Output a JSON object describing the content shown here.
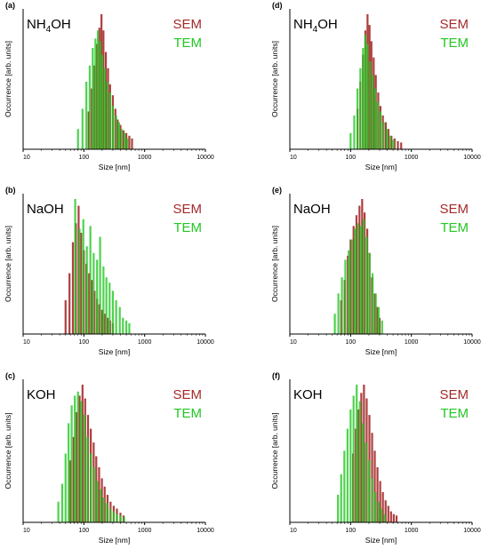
{
  "figure": {
    "panels": [
      {
        "label": "(a)",
        "sample": "NH",
        "sub": "4",
        "sample_rest": "OH"
      },
      {
        "label": "(d)",
        "sample": "NH",
        "sub": "4",
        "sample_rest": "OH"
      },
      {
        "label": "(b)",
        "sample": "NaOH",
        "sub": "",
        "sample_rest": ""
      },
      {
        "label": "(e)",
        "sample": "NaOH",
        "sub": "",
        "sample_rest": ""
      },
      {
        "label": "(c)",
        "sample": "KOH",
        "sub": "",
        "sample_rest": ""
      },
      {
        "label": "(f)",
        "sample": "KOH",
        "sub": "",
        "sample_rest": ""
      }
    ]
  },
  "colors": {
    "sem": "#a52a2a",
    "tem": "#22c722",
    "axis": "#000000"
  },
  "chart_data": [
    {
      "type": "bar",
      "panel": "(a)",
      "title": "NH4OH",
      "xlabel": "Size [nm]",
      "ylabel": "Occurrence [arb. units]",
      "xscale": "log",
      "xlim": [
        10,
        10000
      ],
      "ylim": [
        0,
        1
      ],
      "xticks": [
        "10",
        "100",
        "1000",
        "10000"
      ],
      "legend": [
        "SEM",
        "TEM"
      ],
      "series": [
        {
          "name": "SEM",
          "x": [
            120,
            135,
            150,
            165,
            180,
            195,
            210,
            230,
            250,
            270,
            300,
            330,
            360,
            400,
            450,
            500,
            560,
            620
          ],
          "values": [
            0.28,
            0.45,
            0.62,
            0.78,
            0.9,
            1.0,
            0.88,
            0.72,
            0.6,
            0.48,
            0.4,
            0.3,
            0.22,
            0.18,
            0.14,
            0.12,
            0.1,
            0.08
          ]
        },
        {
          "name": "TEM",
          "x": [
            80,
            95,
            110,
            125,
            140,
            155,
            170,
            185,
            200,
            220,
            245,
            270,
            300,
            340,
            380,
            420,
            470,
            520
          ],
          "values": [
            0.15,
            0.3,
            0.5,
            0.62,
            0.75,
            0.82,
            0.88,
            0.8,
            0.7,
            0.6,
            0.5,
            0.42,
            0.32,
            0.25,
            0.2,
            0.15,
            0.12,
            0.08
          ]
        }
      ]
    },
    {
      "type": "bar",
      "panel": "(d)",
      "title": "NH4OH",
      "xlabel": "Size [nm]",
      "ylabel": "Occurrence [arb. units]",
      "xscale": "log",
      "xlim": [
        10,
        10000
      ],
      "ylim": [
        0,
        1
      ],
      "xticks": [
        "10",
        "100",
        "1000",
        "10000"
      ],
      "legend": [
        "SEM",
        "TEM"
      ],
      "series": [
        {
          "name": "SEM",
          "x": [
            130,
            145,
            160,
            175,
            190,
            205,
            220,
            240,
            260,
            285,
            310,
            340,
            380,
            420,
            470,
            530,
            600,
            680
          ],
          "values": [
            0.3,
            0.5,
            0.7,
            0.88,
            1.0,
            0.92,
            0.8,
            0.68,
            0.55,
            0.42,
            0.32,
            0.25,
            0.2,
            0.15,
            0.1,
            0.08,
            0.06,
            0.05
          ]
        },
        {
          "name": "TEM",
          "x": [
            100,
            115,
            130,
            145,
            160,
            175,
            190,
            210,
            230,
            255,
            280,
            310,
            350,
            400,
            450,
            510
          ],
          "values": [
            0.12,
            0.25,
            0.45,
            0.6,
            0.75,
            0.85,
            0.78,
            0.65,
            0.55,
            0.45,
            0.35,
            0.28,
            0.2,
            0.15,
            0.1,
            0.07
          ]
        }
      ]
    },
    {
      "type": "bar",
      "panel": "(b)",
      "title": "NaOH",
      "xlabel": "Size [nm]",
      "ylabel": "Occurrence [arb. units]",
      "xscale": "log",
      "xlim": [
        10,
        10000
      ],
      "ylim": [
        0,
        1
      ],
      "xticks": [
        "10",
        "100",
        "1000",
        "10000"
      ],
      "legend": [
        "SEM",
        "TEM"
      ],
      "series": [
        {
          "name": "SEM",
          "x": [
            50,
            58,
            66,
            74,
            82,
            90,
            100,
            110,
            122,
            135,
            150,
            165,
            180,
            200,
            220,
            245,
            270,
            300
          ],
          "values": [
            0.25,
            0.45,
            0.68,
            0.82,
            0.95,
            0.75,
            0.62,
            0.52,
            0.45,
            0.4,
            0.32,
            0.26,
            0.22,
            0.18,
            0.15,
            0.12,
            0.1,
            0.08
          ]
        },
        {
          "name": "TEM",
          "x": [
            72,
            85,
            98,
            112,
            128,
            145,
            165,
            185,
            210,
            235,
            265,
            300,
            340,
            390,
            440,
            500,
            560
          ],
          "values": [
            1.0,
            0.78,
            0.85,
            0.65,
            0.8,
            0.6,
            0.55,
            0.72,
            0.5,
            0.42,
            0.38,
            0.32,
            0.25,
            0.2,
            0.12,
            0.1,
            0.08
          ]
        }
      ]
    },
    {
      "type": "bar",
      "panel": "(e)",
      "title": "NaOH",
      "xlabel": "Size [nm]",
      "ylabel": "Occurrence [arb. units]",
      "xscale": "log",
      "xlim": [
        10,
        10000
      ],
      "ylim": [
        0,
        1
      ],
      "xticks": [
        "10",
        "100",
        "1000",
        "10000"
      ],
      "legend": [
        "SEM",
        "TEM"
      ],
      "series": [
        {
          "name": "SEM",
          "x": [
            70,
            80,
            90,
            100,
            112,
            125,
            140,
            155,
            170,
            188,
            205,
            225,
            250,
            275,
            300
          ],
          "values": [
            0.25,
            0.4,
            0.58,
            0.7,
            0.8,
            0.88,
            0.95,
            1.0,
            0.9,
            0.78,
            0.6,
            0.42,
            0.3,
            0.2,
            0.12
          ]
        },
        {
          "name": "TEM",
          "x": [
            55,
            63,
            72,
            82,
            93,
            105,
            118,
            132,
            148,
            165,
            185,
            205,
            230,
            260,
            290,
            330
          ],
          "values": [
            0.15,
            0.3,
            0.42,
            0.55,
            0.62,
            0.7,
            0.78,
            0.82,
            0.8,
            0.85,
            0.72,
            0.6,
            0.45,
            0.3,
            0.2,
            0.1
          ]
        }
      ]
    },
    {
      "type": "bar",
      "panel": "(c)",
      "title": "KOH",
      "xlabel": "Size [nm]",
      "ylabel": "Occurrence [arb. units]",
      "xscale": "log",
      "xlim": [
        10,
        10000
      ],
      "ylim": [
        0,
        1
      ],
      "xticks": [
        "10",
        "100",
        "1000",
        "10000"
      ],
      "legend": [
        "SEM",
        "TEM"
      ],
      "series": [
        {
          "name": "SEM",
          "x": [
            60,
            68,
            76,
            85,
            95,
            105,
            117,
            130,
            145,
            160,
            178,
            198,
            220,
            245,
            275,
            310,
            350,
            400,
            450
          ],
          "values": [
            0.45,
            0.62,
            0.8,
            0.92,
            1.0,
            0.9,
            0.78,
            0.68,
            0.58,
            0.48,
            0.4,
            0.32,
            0.26,
            0.2,
            0.15,
            0.12,
            0.1,
            0.07,
            0.05
          ]
        },
        {
          "name": "TEM",
          "x": [
            38,
            44,
            50,
            56,
            63,
            71,
            80,
            90,
            102,
            115,
            130,
            147,
            166,
            188,
            212,
            240,
            272,
            310,
            350,
            400,
            460
          ],
          "values": [
            0.15,
            0.28,
            0.5,
            0.72,
            0.85,
            0.92,
            0.95,
            0.88,
            0.78,
            0.62,
            0.5,
            0.4,
            0.3,
            0.24,
            0.18,
            0.14,
            0.1,
            0.08,
            0.06,
            0.05,
            0.04
          ]
        }
      ]
    },
    {
      "type": "bar",
      "panel": "(f)",
      "title": "KOH",
      "xlabel": "Size [nm]",
      "ylabel": "Occurrence [arb. units]",
      "xscale": "log",
      "xlim": [
        10,
        10000
      ],
      "ylim": [
        0,
        1
      ],
      "xticks": [
        "10",
        "100",
        "1000",
        "10000"
      ],
      "legend": [
        "SEM",
        "TEM"
      ],
      "series": [
        {
          "name": "SEM",
          "x": [
            110,
            122,
            135,
            150,
            166,
            184,
            204,
            226,
            250,
            277,
            307,
            340,
            377,
            418,
            463,
            513,
            570
          ],
          "values": [
            0.5,
            0.68,
            0.82,
            0.94,
            1.0,
            0.9,
            0.78,
            0.65,
            0.52,
            0.4,
            0.3,
            0.22,
            0.16,
            0.12,
            0.08,
            0.06,
            0.05
          ]
        },
        {
          "name": "TEM",
          "x": [
            62,
            70,
            79,
            89,
            100,
            112,
            126,
            142,
            160,
            180,
            202,
            227,
            255,
            287,
            322,
            362
          ],
          "values": [
            0.2,
            0.35,
            0.52,
            0.68,
            0.82,
            0.92,
            1.0,
            0.88,
            0.72,
            0.58,
            0.45,
            0.32,
            0.22,
            0.15,
            0.1,
            0.06
          ]
        }
      ]
    }
  ]
}
